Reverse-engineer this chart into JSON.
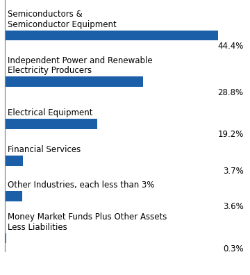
{
  "categories": [
    "Semiconductors &\nSemiconductor Equipment",
    "Independent Power and Renewable\nElectricity Producers",
    "Electrical Equipment",
    "Financial Services",
    "Other Industries, each less than 3%",
    "Money Market Funds Plus Other Assets\nLess Liabilities"
  ],
  "values": [
    44.4,
    28.8,
    19.2,
    3.7,
    3.6,
    0.3
  ],
  "labels": [
    "44.4%",
    "28.8%",
    "19.2%",
    "3.7%",
    "3.6%",
    "0.3%"
  ],
  "bar_color": "#1a5fa8",
  "background_color": "#ffffff",
  "xlim": [
    0,
    50
  ],
  "bar_height": 0.38,
  "label_fontsize": 8.5,
  "value_fontsize": 8.5,
  "text_color": "#000000",
  "axis_line_color": "#888888"
}
